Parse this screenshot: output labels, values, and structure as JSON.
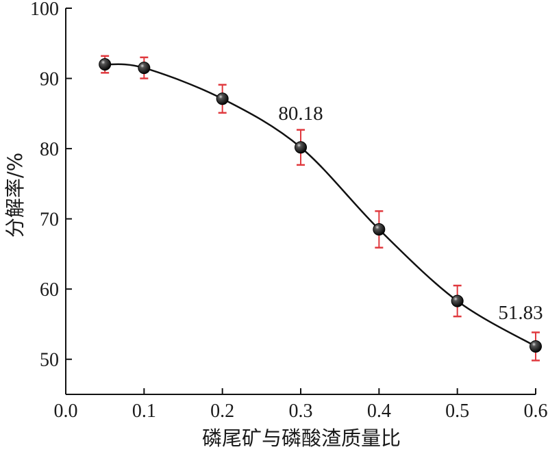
{
  "chart_data": {
    "type": "line",
    "xlabel": "磷尾矿与磷酸渣质量比",
    "ylabel": "分解率/%",
    "xlim": [
      0.0,
      0.6
    ],
    "ylim": [
      45,
      100
    ],
    "x_ticks": [
      "0.0",
      "0.1",
      "0.2",
      "0.3",
      "0.4",
      "0.5",
      "0.6"
    ],
    "y_ticks": [
      "50",
      "60",
      "70",
      "80",
      "90",
      "100"
    ],
    "grid": false,
    "smooth_curve": true,
    "error_bars": true,
    "colors": {
      "curve": "#111111",
      "marker": "#111111",
      "error_bar": "#e0393e"
    },
    "series": [
      {
        "x": [
          0.05,
          0.1,
          0.2,
          0.3,
          0.4,
          0.5,
          0.6
        ],
        "y": [
          92.0,
          91.5,
          87.1,
          80.18,
          68.5,
          58.3,
          51.83
        ],
        "yerr": [
          1.2,
          1.5,
          2.0,
          2.5,
          2.6,
          2.2,
          2.0
        ]
      }
    ],
    "annotations": [
      {
        "text": "80.18",
        "x": 0.3,
        "y": 80.18
      },
      {
        "text": "51.83",
        "x": 0.6,
        "y": 51.83
      }
    ]
  }
}
